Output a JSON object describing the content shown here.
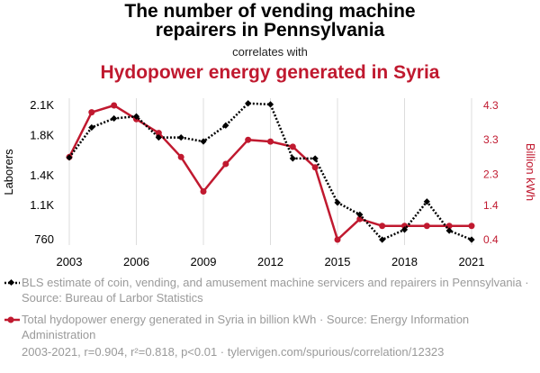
{
  "title": {
    "line1": "The number of vending machine",
    "line2": "repairers in Pennsylvania",
    "correlates": "correlates with",
    "line3": "Hydopower energy generated in Syria"
  },
  "legend": {
    "series1": "BLS estimate of coin, vending, and amusement machine servicers and repairers in Pennsylvania · Source: Bureau of Larbor Statistics",
    "series2": "Total hydopower energy generated in Syria in billion kWh · Source: Energy Information Administration"
  },
  "footer": "2003-2021, r=0.904, r²=0.818, p<0.01 · tylervigen.com/spurious/correlation/12323",
  "colors": {
    "black_series": "#000000",
    "red_series": "#c0192f",
    "grid": "#dddddd"
  },
  "chart_data": {
    "type": "line",
    "x": [
      2003,
      2004,
      2005,
      2006,
      2007,
      2008,
      2009,
      2010,
      2011,
      2012,
      2013,
      2014,
      2015,
      2016,
      2017,
      2018,
      2019,
      2020,
      2021
    ],
    "xlabel": "",
    "xticks": [
      "2003",
      "2006",
      "2009",
      "2012",
      "2015",
      "2018",
      "2021"
    ],
    "xlim": [
      2003,
      2021
    ],
    "series": [
      {
        "name": "BLS estimate of coin, vending, and amusement machine servicers and repairers in Pennsylvania",
        "axis": "left",
        "style": "dotted-black-diamond",
        "values": [
          1580,
          1880,
          1970,
          1990,
          1780,
          1780,
          1740,
          1900,
          2120,
          2110,
          1570,
          1570,
          1130,
          1010,
          760,
          860,
          1140,
          850,
          760
        ]
      },
      {
        "name": "Total hydopower energy generated in Syria in billion kWh",
        "axis": "right",
        "style": "solid-red-circle",
        "values": [
          2.8,
          4.1,
          4.3,
          3.9,
          3.5,
          2.8,
          1.8,
          2.6,
          3.3,
          3.25,
          3.1,
          2.5,
          0.4,
          1.0,
          0.8,
          0.8,
          0.8,
          0.8,
          0.8
        ]
      }
    ],
    "y_left": {
      "label": "Laborers",
      "ticks": [
        "760",
        "1.1K",
        "1.4K",
        "1.8K",
        "2.1K"
      ],
      "tick_values": [
        760,
        1100,
        1400,
        1800,
        2100
      ],
      "ylim": [
        760,
        2100
      ]
    },
    "y_right": {
      "label": "Billion kWh",
      "ticks": [
        "0.4",
        "1.4",
        "2.3",
        "3.3",
        "4.3"
      ],
      "tick_values": [
        0.4,
        1.4,
        2.3,
        3.3,
        4.3
      ],
      "ylim": [
        0.4,
        4.3
      ]
    },
    "grid": "vertical",
    "legend_position": "bottom"
  }
}
